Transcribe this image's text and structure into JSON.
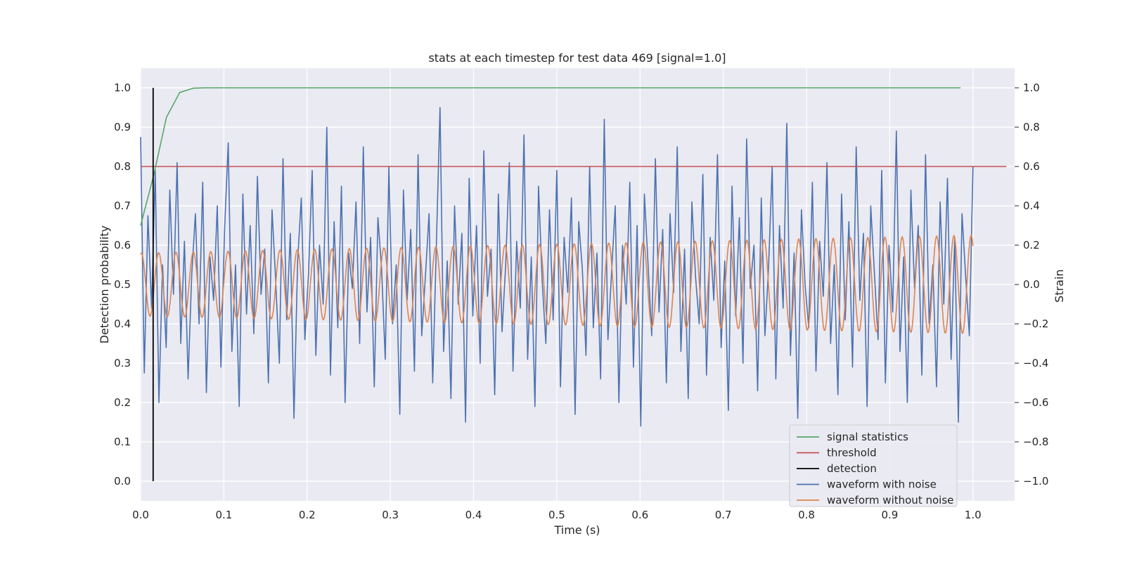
{
  "chart_data": {
    "type": "line",
    "title": "stats at each timestep for test data 469 [signal=1.0]",
    "xlabel": "Time (s)",
    "ylabel_left": "Detection probability",
    "ylabel_right": "Strain",
    "xlim": [
      0.0,
      1.05
    ],
    "ylim_left": [
      -0.05,
      1.05
    ],
    "ylim_right": [
      -1.1,
      1.1
    ],
    "x_ticks": [
      0.0,
      0.1,
      0.2,
      0.3,
      0.4,
      0.5,
      0.6,
      0.7,
      0.8,
      0.9,
      1.0
    ],
    "x_tick_labels": [
      "0.0",
      "0.1",
      "0.2",
      "0.3",
      "0.4",
      "0.5",
      "0.6",
      "0.7",
      "0.8",
      "0.9",
      "1.0"
    ],
    "y_left_ticks": [
      0.0,
      0.1,
      0.2,
      0.3,
      0.4,
      0.5,
      0.6,
      0.7,
      0.8,
      0.9,
      1.0
    ],
    "y_left_tick_labels": [
      "0.0",
      "0.1",
      "0.2",
      "0.3",
      "0.4",
      "0.5",
      "0.6",
      "0.7",
      "0.8",
      "0.9",
      "1.0"
    ],
    "y_right_ticks": [
      -1.0,
      -0.8,
      -0.6,
      -0.4,
      -0.2,
      0.0,
      0.2,
      0.4,
      0.6,
      0.8,
      1.0
    ],
    "y_right_tick_labels": [
      "−1.0",
      "−0.8",
      "−0.6",
      "−0.4",
      "−0.2",
      "0.0",
      "0.2",
      "0.4",
      "0.6",
      "0.8",
      "1.0"
    ],
    "grid": true,
    "legend_position": "lower-right",
    "series": [
      {
        "name": "signal statistics",
        "axis": "left",
        "color": "#55a868",
        "x": [
          0.0,
          0.016,
          0.031,
          0.047,
          0.063,
          0.078,
          0.1,
          0.3,
          0.5,
          0.7,
          0.9,
          0.985
        ],
        "y": [
          0.65,
          0.78,
          0.925,
          0.988,
          0.999,
          1.0,
          1.0,
          1.0,
          1.0,
          1.0,
          1.0,
          1.0
        ]
      },
      {
        "name": "threshold",
        "axis": "left",
        "color": "#c44e52",
        "x": [
          0.0,
          1.04
        ],
        "y": [
          0.8,
          0.8
        ]
      },
      {
        "name": "detection",
        "axis": "left",
        "color": "#000000",
        "x": [
          0.015,
          0.015
        ],
        "y": [
          0.0,
          1.0
        ]
      },
      {
        "name": "waveform with noise",
        "axis": "right",
        "color": "#4c72b0",
        "x_range": [
          0.0,
          1.0
        ],
        "y": [
          0.75,
          -0.45,
          0.35,
          -0.12,
          0.58,
          -0.6,
          0.1,
          -0.32,
          0.48,
          -0.05,
          0.62,
          -0.3,
          0.22,
          -0.48,
          0.05,
          0.36,
          -0.2,
          0.52,
          -0.55,
          0.14,
          -0.08,
          0.4,
          -0.42,
          0.28,
          0.72,
          -0.34,
          0.1,
          -0.62,
          0.46,
          -0.15,
          0.3,
          -0.25,
          0.55,
          -0.05,
          0.18,
          -0.5,
          0.38,
          0.02,
          -0.4,
          0.64,
          -0.18,
          0.26,
          -0.68,
          0.12,
          0.44,
          -0.28,
          0.06,
          0.58,
          -0.36,
          0.2,
          -0.1,
          0.8,
          -0.46,
          0.32,
          -0.22,
          0.5,
          -0.6,
          0.16,
          -0.02,
          0.42,
          -0.3,
          0.7,
          -0.14,
          0.24,
          -0.52,
          0.34,
          0.08,
          -0.38,
          0.6,
          -0.2,
          0.1,
          -0.66,
          0.48,
          -0.08,
          0.28,
          -0.44,
          0.66,
          -0.26,
          0.04,
          0.36,
          -0.5,
          0.2,
          0.9,
          -0.34,
          0.12,
          -0.58,
          0.4,
          -0.1,
          0.26,
          -0.7,
          0.54,
          -0.16,
          0.3,
          -0.4,
          0.68,
          -0.06,
          0.18,
          -0.56,
          0.46,
          -0.24,
          0.1,
          0.62,
          -0.44,
          0.22,
          -0.12,
          0.76,
          -0.38,
          0.14,
          -0.62,
          0.5,
          0.02,
          -0.3,
          0.38,
          -0.18,
          0.58,
          -0.52,
          0.24,
          -0.04,
          0.44,
          -0.66,
          0.32,
          0.08,
          -0.36,
          0.6,
          -0.22,
          0.16,
          -0.48,
          0.84,
          -0.28,
          0.06,
          0.4,
          -0.6,
          0.2,
          -0.1,
          0.52,
          -0.42,
          0.3,
          -0.72,
          0.46,
          0.1,
          -0.26,
          0.64,
          -0.14,
          0.28,
          -0.5,
          0.36,
          -0.04,
          0.7,
          -0.34,
          0.18,
          -0.58,
          0.42,
          0.04,
          -0.2,
          0.56,
          -0.46,
          0.24,
          -0.08,
          0.66,
          -0.32,
          0.12,
          -0.64,
          0.5,
          -0.16,
          0.34,
          -0.4,
          0.74,
          -0.02,
          0.2,
          -0.54,
          0.44,
          -0.26,
          0.08,
          0.6,
          -0.48,
          0.3,
          -0.12,
          0.82,
          -0.36,
          0.16,
          -0.68,
          0.38,
          0.0,
          -0.22,
          0.52,
          -0.44,
          0.22,
          -0.06,
          0.62,
          -0.3,
          0.1,
          -0.56,
          0.46,
          -0.18,
          0.32,
          -0.42,
          0.7,
          -0.08,
          0.26,
          -0.62,
          0.4,
          0.06,
          -0.28,
          0.58,
          -0.5,
          0.2,
          -0.14,
          0.78,
          -0.34,
          0.14,
          -0.6,
          0.48,
          -0.02,
          0.3,
          -0.46,
          0.66,
          -0.2,
          0.1,
          -0.52,
          0.42,
          -0.1,
          0.54,
          -0.38,
          0.24,
          -0.7,
          0.36,
          0.04,
          -0.26,
          0.6
        ],
        "peaks_note": ""
      },
      {
        "name": "waveform without noise",
        "axis": "right",
        "color": "#dd8452",
        "x_range": [
          0.0,
          1.0
        ],
        "amplitude_range": [
          0.16,
          0.25
        ],
        "cycles": 48
      }
    ]
  }
}
